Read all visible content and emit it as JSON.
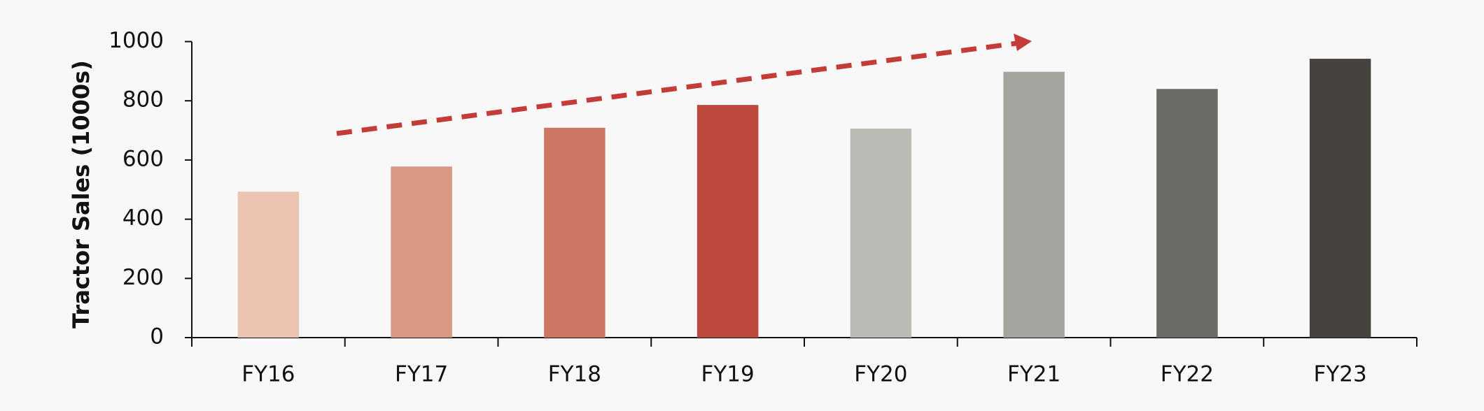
{
  "chart_data": {
    "type": "bar",
    "y_label": "Tractor Sales (1000s)",
    "categories": [
      "FY16",
      "FY17",
      "FY18",
      "FY19",
      "FY20",
      "FY21",
      "FY22",
      "FY23"
    ],
    "values": [
      493,
      578,
      709,
      786,
      706,
      898,
      840,
      942
    ],
    "colors": [
      "#eac3b1",
      "#d99883",
      "#cb7763",
      "#bc4a3c",
      "#bbbbb6",
      "#a4a39e",
      "#6b6a66",
      "#46423e"
    ],
    "ylim": [
      0,
      1000
    ],
    "yticks": [
      0,
      200,
      400,
      600,
      800,
      1000
    ],
    "grid": false
  }
}
